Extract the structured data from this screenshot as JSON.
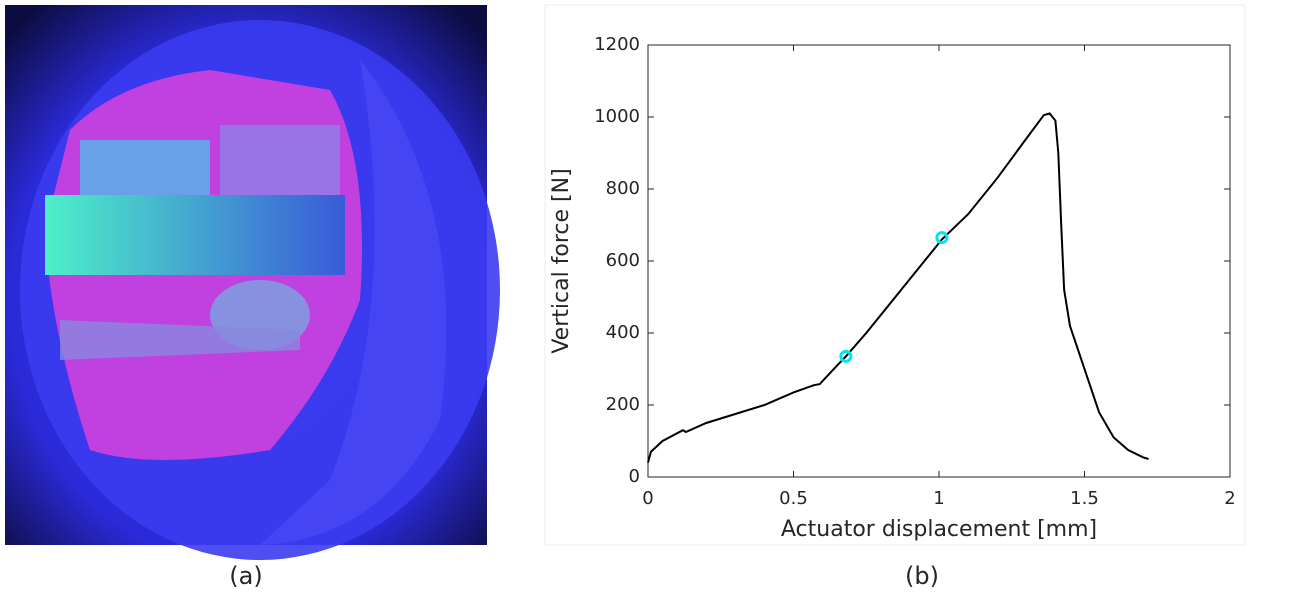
{
  "captions": [
    "(a)",
    "(b)"
  ],
  "chart_data": {
    "type": "line",
    "xlabel": "Actuator displacement [mm]",
    "ylabel": "Vertical force [N]",
    "x": [
      0,
      0.01,
      0.05,
      0.12,
      0.13,
      0.2,
      0.3,
      0.4,
      0.5,
      0.57,
      0.59,
      0.65,
      0.68,
      0.75,
      0.85,
      0.95,
      1.01,
      1.1,
      1.2,
      1.3,
      1.36,
      1.38,
      1.4,
      1.41,
      1.42,
      1.43,
      1.45,
      1.5,
      1.55,
      1.6,
      1.65,
      1.7,
      1.72
    ],
    "values": [
      40,
      70,
      100,
      130,
      125,
      150,
      175,
      200,
      235,
      255,
      258,
      310,
      335,
      400,
      500,
      600,
      660,
      730,
      830,
      940,
      1005,
      1010,
      990,
      900,
      700,
      520,
      420,
      300,
      180,
      110,
      75,
      55,
      50
    ],
    "color": "#000000",
    "markers": {
      "x": [
        0.68,
        1.01
      ],
      "values": [
        335,
        665
      ],
      "color": "#00e5f0"
    },
    "xlim": [
      0,
      2
    ],
    "xticks": [
      0,
      0.5,
      1,
      1.5,
      2
    ],
    "ylim": [
      0,
      1200
    ],
    "yticks": [
      0,
      200,
      400,
      600,
      800,
      1000,
      1200
    ]
  }
}
